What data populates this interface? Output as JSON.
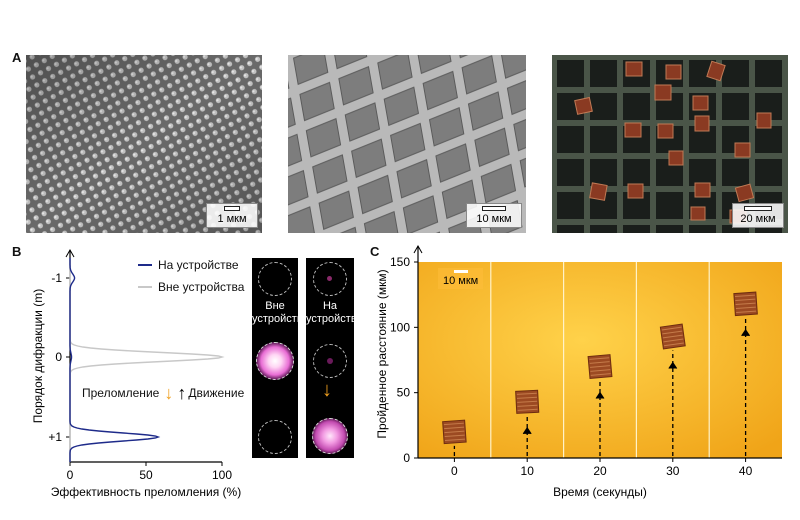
{
  "panel_a": {
    "label": "A",
    "scales": [
      "1 мкм",
      "10 мкм",
      "20 мкм"
    ]
  },
  "panel_b": {
    "label": "B",
    "legend": {
      "on": "На устройстве",
      "off": "Вне устройства"
    },
    "arrows": {
      "refraction": "Преломление",
      "motion": "Движение"
    },
    "camera": {
      "off_label": "Вне\nустройства",
      "on_label": "На\nустройстве"
    },
    "colors": {
      "on": "#1e2b8a",
      "off": "#c8c8c8",
      "arrow": "#f0a020"
    }
  },
  "panel_c": {
    "label": "C",
    "scale": "10 мкм"
  },
  "chart_data": [
    {
      "type": "line",
      "title": "",
      "xlabel": "Эффективность преломления (%)",
      "ylabel": "Порядок дифракции (m)",
      "xlim": [
        0,
        100
      ],
      "xticks": [
        "0",
        "50",
        "100"
      ],
      "yticks": [
        "-1",
        "0",
        "+1"
      ],
      "orientation": "horizontal-profile",
      "series": [
        {
          "name": "На устройстве",
          "peaks": [
            {
              "order": -1,
              "value": 3
            },
            {
              "order": 0,
              "value": 1
            },
            {
              "order": 1,
              "value": 58
            }
          ]
        },
        {
          "name": "Вне устройства",
          "peaks": [
            {
              "order": -1,
              "value": 0
            },
            {
              "order": 0,
              "value": 100
            },
            {
              "order": 1,
              "value": 0
            }
          ]
        }
      ]
    },
    {
      "type": "scatter",
      "title": "",
      "xlabel": "Время (секунды)",
      "ylabel": "Пройденное расстояние (мкм)",
      "ylim": [
        0,
        150
      ],
      "yticks": [
        "0",
        "50",
        "100",
        "150"
      ],
      "xticks": [
        "0",
        "10",
        "20",
        "30",
        "40"
      ],
      "x": [
        0,
        10,
        20,
        30,
        40
      ],
      "y": [
        20,
        43,
        70,
        93,
        118
      ]
    }
  ]
}
